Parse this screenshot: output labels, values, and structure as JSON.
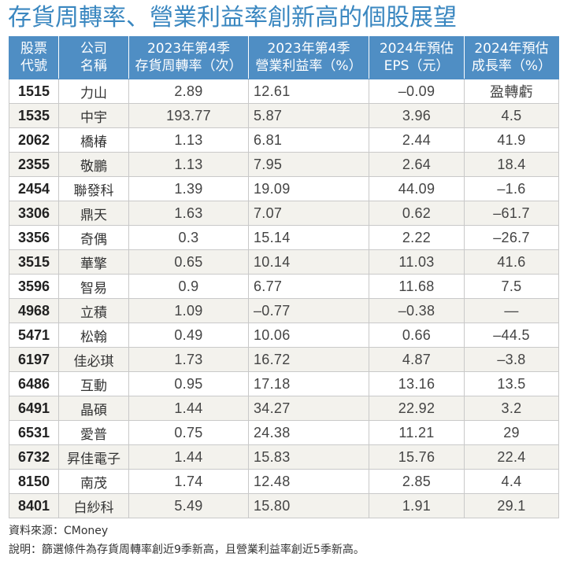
{
  "title": "存貨周轉率、營業利益率創新高的個股展望",
  "table": {
    "headers": [
      {
        "line1": "股票",
        "line2": "代號"
      },
      {
        "line1": "公司",
        "line2": "名稱"
      },
      {
        "line1": "2023年第4季",
        "line2": "存貨周轉率（次）"
      },
      {
        "line1": "2023年第4季",
        "line2": "營業利益率（%）"
      },
      {
        "line1": "2024年預估",
        "line2": "EPS（元）"
      },
      {
        "line1": "2024年預估",
        "line2": "成長率（%）"
      }
    ],
    "rows": [
      {
        "code": "1515",
        "name": "力山",
        "inventory_turnover": "2.89",
        "operating_margin": "12.61",
        "eps_2024": "–0.09",
        "growth_2024": "盈轉虧"
      },
      {
        "code": "1535",
        "name": "中宇",
        "inventory_turnover": "193.77",
        "operating_margin": "5.87",
        "eps_2024": "3.96",
        "growth_2024": "4.5"
      },
      {
        "code": "2062",
        "name": "橋椿",
        "inventory_turnover": "1.13",
        "operating_margin": "6.81",
        "eps_2024": "2.44",
        "growth_2024": "41.9"
      },
      {
        "code": "2355",
        "name": "敬鵬",
        "inventory_turnover": "1.13",
        "operating_margin": "7.95",
        "eps_2024": "2.64",
        "growth_2024": "18.4"
      },
      {
        "code": "2454",
        "name": "聯發科",
        "inventory_turnover": "1.39",
        "operating_margin": "19.09",
        "eps_2024": "44.09",
        "growth_2024": "–1.6"
      },
      {
        "code": "3306",
        "name": "鼎天",
        "inventory_turnover": "1.63",
        "operating_margin": "7.07",
        "eps_2024": "0.62",
        "growth_2024": "–61.7"
      },
      {
        "code": "3356",
        "name": "奇偶",
        "inventory_turnover": "0.3",
        "operating_margin": "15.14",
        "eps_2024": "2.22",
        "growth_2024": "–26.7"
      },
      {
        "code": "3515",
        "name": "華擎",
        "inventory_turnover": "0.65",
        "operating_margin": "10.14",
        "eps_2024": "11.03",
        "growth_2024": "41.6"
      },
      {
        "code": "3596",
        "name": "智易",
        "inventory_turnover": "0.9",
        "operating_margin": "6.77",
        "eps_2024": "11.68",
        "growth_2024": "7.5"
      },
      {
        "code": "4968",
        "name": "立積",
        "inventory_turnover": "1.09",
        "operating_margin": "–0.77",
        "eps_2024": "–0.38",
        "growth_2024": "—"
      },
      {
        "code": "5471",
        "name": "松翰",
        "inventory_turnover": "0.49",
        "operating_margin": "10.06",
        "eps_2024": "0.66",
        "growth_2024": "–44.5"
      },
      {
        "code": "6197",
        "name": "佳必琪",
        "inventory_turnover": "1.73",
        "operating_margin": "16.72",
        "eps_2024": "4.87",
        "growth_2024": "–3.8"
      },
      {
        "code": "6486",
        "name": "互動",
        "inventory_turnover": "0.95",
        "operating_margin": "17.18",
        "eps_2024": "13.16",
        "growth_2024": "13.5"
      },
      {
        "code": "6491",
        "name": "晶碩",
        "inventory_turnover": "1.44",
        "operating_margin": "34.27",
        "eps_2024": "22.92",
        "growth_2024": "3.2"
      },
      {
        "code": "6531",
        "name": "愛普",
        "inventory_turnover": "0.75",
        "operating_margin": "24.38",
        "eps_2024": "11.21",
        "growth_2024": "29"
      },
      {
        "code": "6732",
        "name": "昇佳電子",
        "inventory_turnover": "1.44",
        "operating_margin": "15.83",
        "eps_2024": "15.76",
        "growth_2024": "22.4"
      },
      {
        "code": "8150",
        "name": "南茂",
        "inventory_turnover": "1.74",
        "operating_margin": "12.48",
        "eps_2024": "2.85",
        "growth_2024": "4.4"
      },
      {
        "code": "8401",
        "name": "白紗科",
        "inventory_turnover": "5.49",
        "operating_margin": "15.80",
        "eps_2024": "1.91",
        "growth_2024": "29.1"
      }
    ]
  },
  "footer": {
    "source": "資料來源：CMoney",
    "note": "說明：篩選條件為存貨周轉率創近9季新高，且營業利益率創近5季新高。"
  },
  "colors": {
    "title": "#3a87c0",
    "header_bg": "#4f8ec4",
    "row_alt_bg": "#f3f2ed",
    "border": "#c9c9c9"
  }
}
